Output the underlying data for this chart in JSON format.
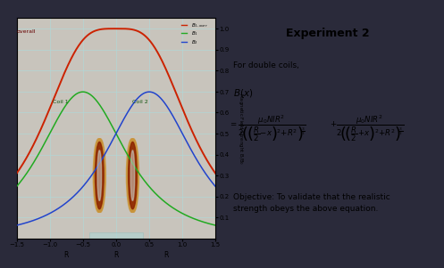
{
  "bg_color": "#2a2a3a",
  "left_panel_bg": "#c8c4bc",
  "right_panel_bg": "#f0eeea",
  "title": "Experiment 2",
  "for_double": "For double coils,",
  "objective": "Objective: To validate that the realistic\nstrength obeys the above equation.",
  "overall_color": "#cc2200",
  "b1_color": "#22aa22",
  "b2_color": "#2244cc",
  "ylabel": "Magnetic Field Strenght B/B$_0$",
  "legend_overall": "$B_{1,over}$",
  "legend_b1": "$B_1$",
  "legend_b2": "$B_2$",
  "coil1_label": "Coil 1",
  "coil2_label": "Coil 2",
  "overall_label": "overall",
  "xlim": [
    -1.5,
    1.5
  ],
  "ylim": [
    0.0,
    1.05
  ],
  "yticks": [
    0.1,
    0.2,
    0.3,
    0.4,
    0.5,
    0.6,
    0.7,
    0.8,
    0.9,
    1.0
  ],
  "xticks": [
    -1.5,
    -1.0,
    -0.5,
    0.0,
    0.5,
    1.0,
    1.5
  ],
  "grid_color": "#b0d8d8",
  "tick_fontsize": 5,
  "coil_gold": "#c8943a",
  "coil_red": "#8b2200",
  "coil_dark": "#5a3010"
}
